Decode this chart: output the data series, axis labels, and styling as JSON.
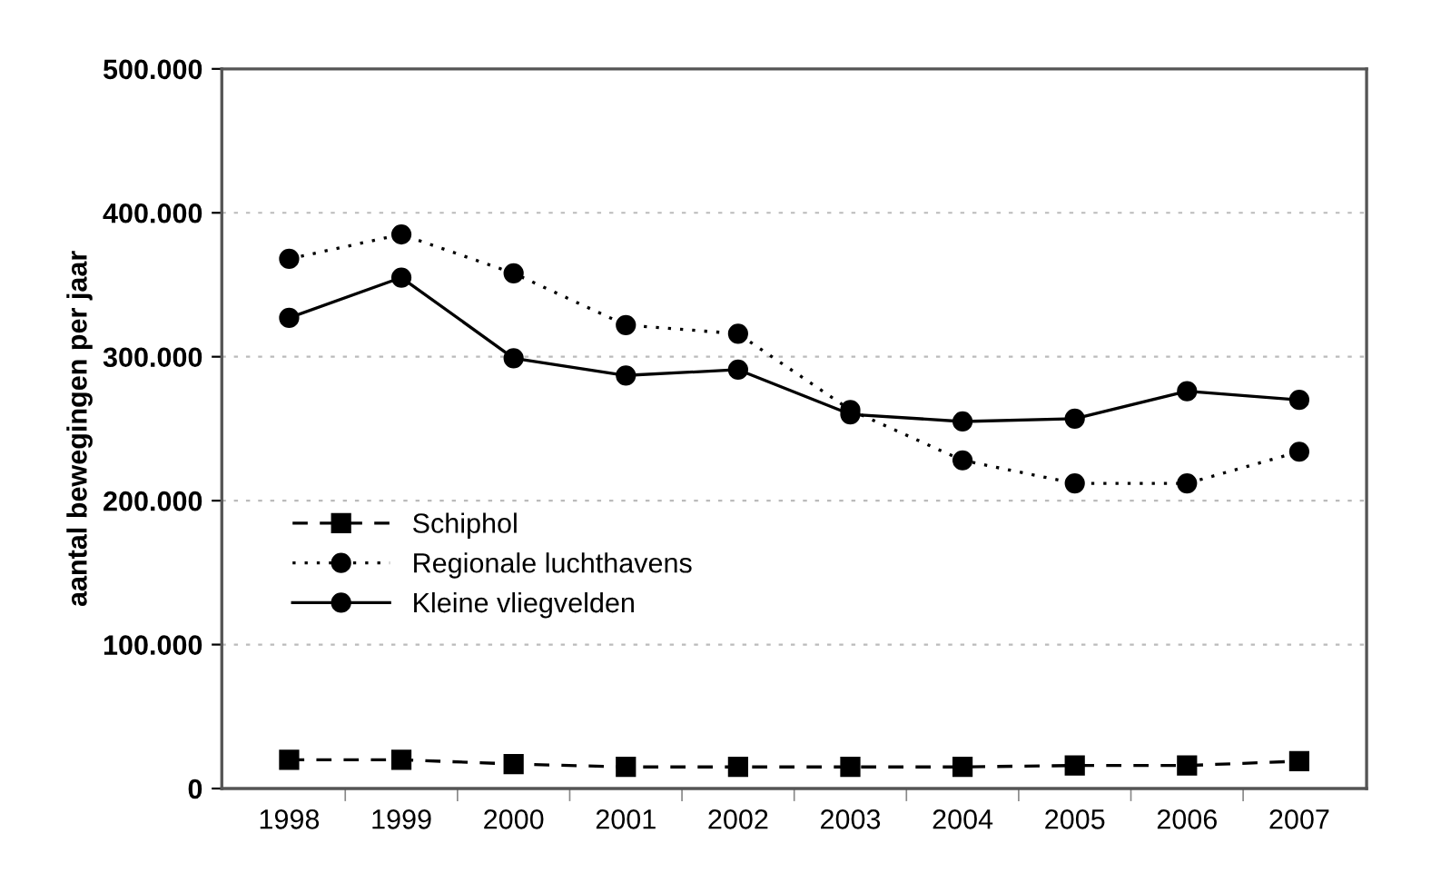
{
  "chart_data": {
    "type": "line",
    "ylabel": "aantal bewegingen per jaar",
    "categories": [
      "1998",
      "1999",
      "2000",
      "2001",
      "2002",
      "2003",
      "2004",
      "2005",
      "2006",
      "2007"
    ],
    "series": [
      {
        "name": "Schiphol",
        "color": "#000000",
        "marker": "square",
        "line_style": "dashed",
        "values": [
          20000,
          20000,
          17000,
          15000,
          15000,
          15000,
          15000,
          16000,
          16000,
          19000
        ]
      },
      {
        "name": "Regionale luchthavens",
        "color": "#000000",
        "marker": "circle",
        "line_style": "dotted",
        "values": [
          368000,
          385000,
          358000,
          322000,
          316000,
          263000,
          228000,
          212000,
          212000,
          234000
        ]
      },
      {
        "name": "Kleine vliegvelden",
        "color": "#000000",
        "marker": "circle",
        "line_style": "solid",
        "values": [
          327000,
          355000,
          299000,
          287000,
          291000,
          260000,
          255000,
          257000,
          276000,
          270000
        ]
      }
    ],
    "ylim": [
      0,
      500000
    ],
    "yticks": [
      {
        "value": 0,
        "label": "0"
      },
      {
        "value": 100000,
        "label": "100.000"
      },
      {
        "value": 200000,
        "label": "200.000"
      },
      {
        "value": 300000,
        "label": "300.000"
      },
      {
        "value": 400000,
        "label": "400.000"
      },
      {
        "value": 500000,
        "label": "500.000"
      }
    ],
    "grid": "y",
    "legend": "center left"
  }
}
